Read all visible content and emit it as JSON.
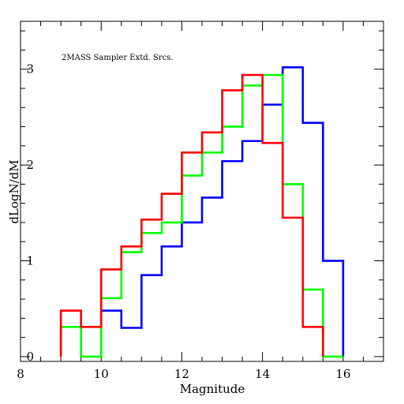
{
  "chart_data": {
    "type": "histogram-step",
    "xlabel": "Magnitude",
    "ylabel": "dLogN/dM",
    "annotation": "2MASS Sampler Extd. Srcs.",
    "xlim": [
      8,
      17
    ],
    "ylim": [
      -0.05,
      3.5
    ],
    "x_ticks": [
      "8",
      "10",
      "12",
      "14",
      "16"
    ],
    "y_ticks": [
      "0",
      "1",
      "2",
      "3"
    ],
    "grid": false,
    "legend": "none",
    "bin_edges": [
      9.0,
      9.5,
      10.0,
      10.5,
      11.0,
      11.5,
      12.0,
      12.5,
      13.0,
      13.5,
      14.0,
      14.5,
      15.0,
      15.5,
      16.0
    ],
    "series": [
      {
        "color": "#0000ff",
        "values": [
          null,
          null,
          0.48,
          0.3,
          0.85,
          1.15,
          1.4,
          1.66,
          2.04,
          2.25,
          2.63,
          3.02,
          2.44,
          1.0
        ],
        "baseline": 0
      },
      {
        "color": "#00ff00",
        "values": [
          0.31,
          0.0,
          0.61,
          1.09,
          1.29,
          1.4,
          1.89,
          2.13,
          2.4,
          2.83,
          2.94,
          1.8,
          0.7,
          0.0
        ],
        "baseline": 0
      },
      {
        "color": "#ff0000",
        "values": [
          0.48,
          0.31,
          0.91,
          1.15,
          1.43,
          1.7,
          2.13,
          2.34,
          2.78,
          2.94,
          2.23,
          1.45,
          0.31,
          null
        ],
        "baseline": 0
      }
    ]
  }
}
